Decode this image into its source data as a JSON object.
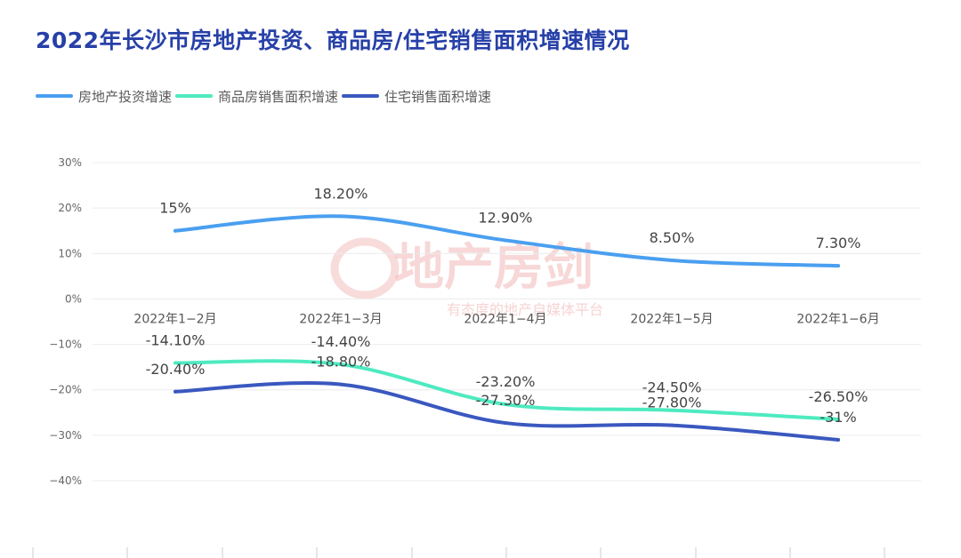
{
  "chart_data": {
    "type": "line",
    "title": "2022年长沙市房地产投资、商品房/住宅销售面积增速情况",
    "categories": [
      "2022年1−2月",
      "2022年1−3月",
      "2022年1−4月",
      "2022年1−5月",
      "2022年1−6月"
    ],
    "y_ticks": [
      "30%",
      "20%",
      "10%",
      "0%",
      "−10%",
      "−20%",
      "−30%",
      "−40%"
    ],
    "ylim": [
      -40,
      30
    ],
    "grid": true,
    "legend_position": "top-left",
    "series": [
      {
        "name": "房地产投资增速",
        "color": "#4a9ff0",
        "values": [
          15,
          18.2,
          12.9,
          8.5,
          7.3
        ],
        "labels": [
          "15%",
          "18.20%",
          "12.90%",
          "8.50%",
          "7.30%"
        ]
      },
      {
        "name": "商品房销售面积增速",
        "color": "#4eeac0",
        "values": [
          -14.1,
          -14.4,
          -23.2,
          -24.5,
          -26.5
        ],
        "labels": [
          "-14.10%",
          "-14.40%",
          "-23.20%",
          "-24.50%",
          "-26.50%"
        ]
      },
      {
        "name": "住宅销售面积增速",
        "color": "#3a58bf",
        "values": [
          -20.4,
          -18.8,
          -27.3,
          -27.8,
          -31
        ],
        "labels": [
          "-20.40%",
          "-18.80%",
          "-27.30%",
          "-27.80%",
          "-31%"
        ]
      }
    ]
  },
  "watermark": {
    "brand": "地产房剑",
    "slogan": "有态度的地产自媒体平台"
  }
}
